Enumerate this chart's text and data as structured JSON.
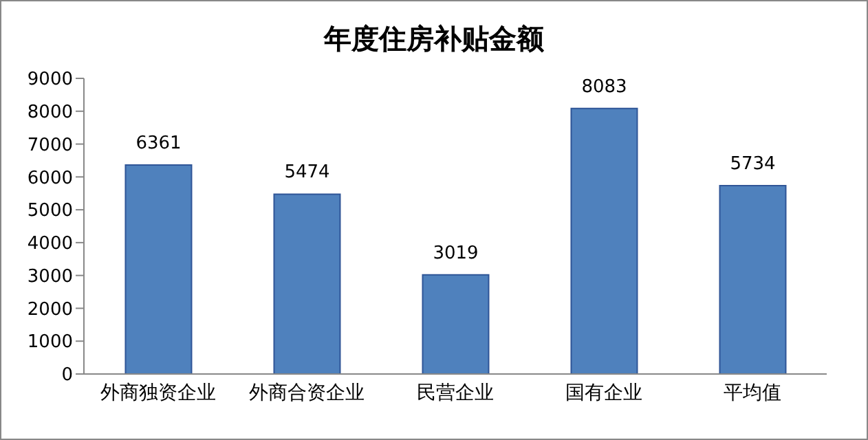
{
  "chart_data": {
    "type": "bar",
    "title": "年度住房补贴金额",
    "categories": [
      "外商独资企业",
      "外商合资企业",
      "民营企业",
      "国有企业",
      "平均值"
    ],
    "values": [
      6361,
      5474,
      3019,
      8083,
      5734
    ],
    "color": "#4f81bd",
    "ylim": [
      0,
      9000
    ],
    "yticks": [
      0,
      1000,
      2000,
      3000,
      4000,
      5000,
      6000,
      7000,
      8000,
      9000
    ],
    "grid": false,
    "data_labels": true
  }
}
